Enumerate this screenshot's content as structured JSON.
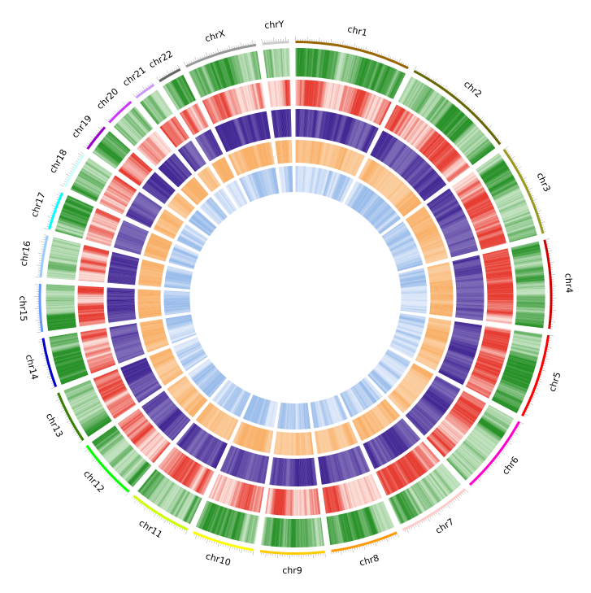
{
  "chromosomes": [
    {
      "name": "chr1",
      "length": 248,
      "color": "#996600"
    },
    {
      "name": "chr2",
      "length": 242,
      "color": "#666600"
    },
    {
      "name": "chr3",
      "length": 198,
      "color": "#99991e"
    },
    {
      "name": "chr4",
      "length": 190,
      "color": "#cc0000"
    },
    {
      "name": "chr5",
      "length": 181,
      "color": "#ff0000"
    },
    {
      "name": "chr6",
      "length": 171,
      "color": "#ff00cc"
    },
    {
      "name": "chr7",
      "length": 159,
      "color": "#ffcccc"
    },
    {
      "name": "chr8",
      "length": 145,
      "color": "#ff9900"
    },
    {
      "name": "chr9",
      "length": 138,
      "color": "#ffcc00"
    },
    {
      "name": "chr10",
      "length": 134,
      "color": "#ffff00"
    },
    {
      "name": "chr11",
      "length": 135,
      "color": "#ccff00"
    },
    {
      "name": "chr12",
      "length": 133,
      "color": "#00ff00"
    },
    {
      "name": "chr13",
      "length": 114,
      "color": "#358000"
    },
    {
      "name": "chr14",
      "length": 107,
      "color": "#0000cc"
    },
    {
      "name": "chr15",
      "length": 102,
      "color": "#6699ff"
    },
    {
      "name": "chr16",
      "length": 90,
      "color": "#99ccff"
    },
    {
      "name": "chr17",
      "length": 83,
      "color": "#00ffff"
    },
    {
      "name": "chr18",
      "length": 80,
      "color": "#ccffff"
    },
    {
      "name": "chr19",
      "length": 59,
      "color": "#9900cc"
    },
    {
      "name": "chr20",
      "length": 64,
      "color": "#cc33ff"
    },
    {
      "name": "chr21",
      "length": 47,
      "color": "#cc99ff"
    },
    {
      "name": "chr22",
      "length": 51,
      "color": "#666666"
    },
    {
      "name": "chrX",
      "length": 156,
      "color": "#999999"
    },
    {
      "name": "chrY",
      "length": 57,
      "color": "#cccccc"
    }
  ],
  "tracks": [
    {
      "name": "green-heatmap",
      "color": "#1a8a1a"
    },
    {
      "name": "red-heatmap",
      "color": "#e3261b"
    },
    {
      "name": "purple-heatmap",
      "color": "#3b1f8f"
    },
    {
      "name": "orange-heatmap",
      "color": "#f79a3e"
    },
    {
      "name": "blue-heatmap",
      "color": "#5b93dd"
    }
  ]
}
